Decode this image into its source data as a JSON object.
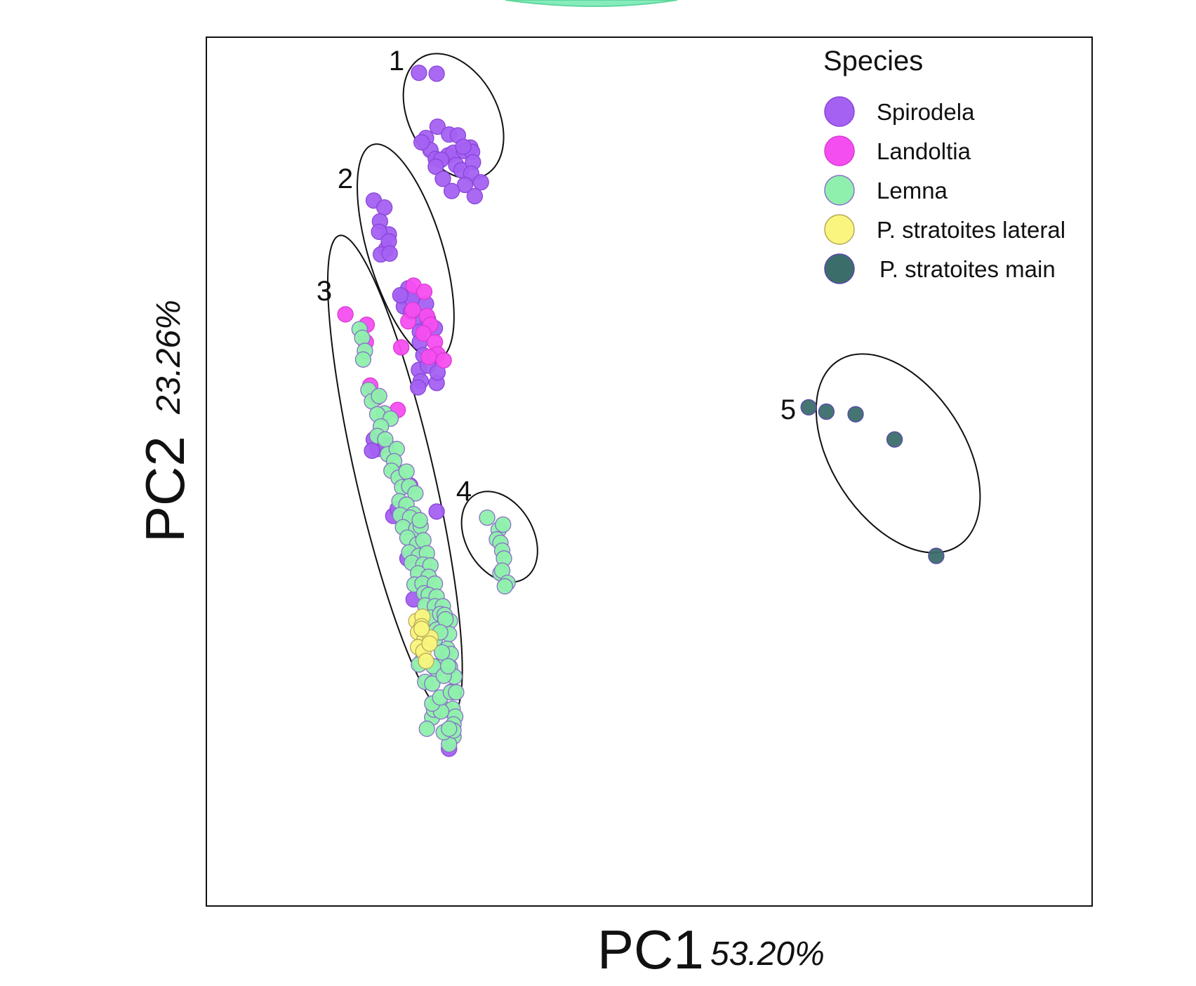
{
  "chart_data": {
    "type": "scatter",
    "title": "",
    "xlabel": "PC1",
    "xlabel_pct": "53.20%",
    "ylabel": "PC2",
    "ylabel_pct": "23.26%",
    "xlim": [
      0,
      100
    ],
    "ylim": [
      0,
      100
    ],
    "grid": false,
    "legend_placement": "top-right",
    "legend_title": "Species",
    "colors": {
      "Spirodela": "#a461f2",
      "Landoltia": "#f54ef0",
      "Lemna": "#8ef0ac",
      "P. stratoites lateral": "#f9f57e",
      "P. stratoites main": "#3b6e6b"
    },
    "legend": [
      "Spirodela",
      "Landoltia",
      "Lemna",
      "P. stratoites lateral",
      "P. stratoites main"
    ],
    "clusters": [
      {
        "label": "1",
        "cx": 27.9,
        "cy": 90.9,
        "rx": 5.0,
        "ry": 7.7,
        "angle": -28
      },
      {
        "label": "2",
        "cx": 22.5,
        "cy": 75.3,
        "rx": 4.2,
        "ry": 12.9,
        "angle": -17
      },
      {
        "label": "3",
        "cx": 21.3,
        "cy": 49.5,
        "rx": 4.4,
        "ry": 28.4,
        "angle": -13
      },
      {
        "label": "4",
        "cx": 33.1,
        "cy": 42.5,
        "rx": 3.8,
        "ry": 5.6,
        "angle": -30
      },
      {
        "label": "5",
        "cx": 78.1,
        "cy": 52.1,
        "rx": 7.5,
        "ry": 12.7,
        "angle": -33
      }
    ],
    "series": [
      {
        "name": "Spirodela",
        "points": [
          [
            24.0,
            95.9
          ],
          [
            26.0,
            95.8
          ],
          [
            26.1,
            89.7
          ],
          [
            24.8,
            88.4
          ],
          [
            27.4,
            88.8
          ],
          [
            28.4,
            88.7
          ],
          [
            29.8,
            87.3
          ],
          [
            25.3,
            87.0
          ],
          [
            27.3,
            86.4
          ],
          [
            25.9,
            86.0
          ],
          [
            27.9,
            86.7
          ],
          [
            29.1,
            86.9
          ],
          [
            30.0,
            86.8
          ],
          [
            26.5,
            85.9
          ],
          [
            25.9,
            85.1
          ],
          [
            28.2,
            85.3
          ],
          [
            28.8,
            84.7
          ],
          [
            30.1,
            85.6
          ],
          [
            29.9,
            84.3
          ],
          [
            29.2,
            83.0
          ],
          [
            31.0,
            83.3
          ],
          [
            30.3,
            81.7
          ],
          [
            27.7,
            82.3
          ],
          [
            26.7,
            83.7
          ],
          [
            24.3,
            87.9
          ],
          [
            29.0,
            87.4
          ],
          [
            18.9,
            81.2
          ],
          [
            20.1,
            80.4
          ],
          [
            19.6,
            78.8
          ],
          [
            20.6,
            77.3
          ],
          [
            19.5,
            77.6
          ],
          [
            20.3,
            75.6
          ],
          [
            19.7,
            75.0
          ],
          [
            20.6,
            76.5
          ],
          [
            20.7,
            75.1
          ],
          [
            22.8,
            71.1
          ],
          [
            22.2,
            70.1
          ],
          [
            23.1,
            69.6
          ],
          [
            22.3,
            69.0
          ],
          [
            24.8,
            69.3
          ],
          [
            23.1,
            68.4
          ],
          [
            24.4,
            67.2
          ],
          [
            25.0,
            67.6
          ],
          [
            24.1,
            66.1
          ],
          [
            25.8,
            66.5
          ],
          [
            24.1,
            64.9
          ],
          [
            24.5,
            63.4
          ],
          [
            25.9,
            63.3
          ],
          [
            24.0,
            61.7
          ],
          [
            24.2,
            60.4
          ],
          [
            26.0,
            60.2
          ],
          [
            23.9,
            59.7
          ],
          [
            25.0,
            62.2
          ],
          [
            23.2,
            69.9
          ],
          [
            21.9,
            70.3
          ],
          [
            26.1,
            61.4
          ],
          [
            18.9,
            53.7
          ],
          [
            19.3,
            52.6
          ],
          [
            21.1,
            44.9
          ],
          [
            18.7,
            52.4
          ],
          [
            23.0,
            48.4
          ],
          [
            21.6,
            45.7
          ],
          [
            20.3,
            53.1
          ],
          [
            22.7,
            40.0
          ],
          [
            23.4,
            35.3
          ],
          [
            26.0,
            45.4
          ],
          [
            27.4,
            18.1
          ]
        ]
      },
      {
        "name": "Landoltia",
        "points": [
          [
            15.7,
            68.1
          ],
          [
            18.1,
            66.9
          ],
          [
            18.0,
            64.9
          ],
          [
            18.5,
            59.9
          ],
          [
            19.2,
            58.5
          ],
          [
            21.6,
            57.1
          ],
          [
            22.0,
            64.3
          ],
          [
            22.8,
            67.3
          ],
          [
            23.3,
            68.6
          ],
          [
            24.9,
            67.9
          ],
          [
            25.3,
            66.9
          ],
          [
            24.5,
            65.9
          ],
          [
            25.8,
            64.9
          ],
          [
            26.1,
            63.5
          ],
          [
            26.8,
            62.8
          ],
          [
            25.1,
            63.2
          ],
          [
            23.4,
            71.4
          ],
          [
            24.6,
            70.7
          ]
        ]
      },
      {
        "name": "Lemna",
        "points": [
          [
            17.3,
            66.4
          ],
          [
            17.6,
            65.4
          ],
          [
            17.9,
            63.9
          ],
          [
            17.7,
            62.9
          ],
          [
            18.3,
            59.4
          ],
          [
            18.7,
            58.1
          ],
          [
            19.5,
            58.7
          ],
          [
            20.1,
            56.7
          ],
          [
            19.3,
            56.6
          ],
          [
            20.8,
            56.1
          ],
          [
            19.7,
            55.2
          ],
          [
            19.3,
            54.1
          ],
          [
            20.2,
            53.7
          ],
          [
            20.5,
            52.0
          ],
          [
            21.5,
            52.6
          ],
          [
            21.2,
            51.2
          ],
          [
            20.9,
            50.1
          ],
          [
            21.7,
            49.3
          ],
          [
            22.6,
            50.0
          ],
          [
            22.1,
            48.2
          ],
          [
            22.9,
            48.3
          ],
          [
            23.6,
            47.5
          ],
          [
            21.8,
            46.6
          ],
          [
            22.6,
            46.2
          ],
          [
            23.4,
            45.1
          ],
          [
            21.9,
            45.0
          ],
          [
            23.0,
            44.7
          ],
          [
            22.2,
            43.6
          ],
          [
            23.7,
            43.4
          ],
          [
            24.2,
            43.7
          ],
          [
            22.7,
            42.4
          ],
          [
            23.8,
            41.6
          ],
          [
            24.5,
            42.1
          ],
          [
            22.9,
            40.7
          ],
          [
            24.0,
            40.3
          ],
          [
            24.9,
            40.6
          ],
          [
            23.2,
            39.5
          ],
          [
            24.5,
            39.3
          ],
          [
            25.3,
            39.2
          ],
          [
            23.9,
            38.3
          ],
          [
            25.1,
            37.9
          ],
          [
            23.5,
            37.0
          ],
          [
            24.4,
            37.1
          ],
          [
            25.8,
            37.1
          ],
          [
            24.6,
            36.0
          ],
          [
            25.1,
            35.8
          ],
          [
            26.0,
            35.6
          ],
          [
            24.7,
            34.6
          ],
          [
            25.8,
            34.5
          ],
          [
            26.7,
            34.5
          ],
          [
            25.3,
            33.2
          ],
          [
            26.4,
            33.6
          ],
          [
            27.5,
            32.8
          ],
          [
            26.0,
            31.8
          ],
          [
            27.4,
            31.3
          ],
          [
            27.2,
            29.6
          ],
          [
            26.8,
            28.2
          ],
          [
            25.9,
            27.3
          ],
          [
            27.0,
            28.0
          ],
          [
            27.5,
            27.5
          ],
          [
            27.7,
            24.7
          ],
          [
            27.0,
            22.6
          ],
          [
            27.8,
            22.7
          ],
          [
            28.1,
            21.8
          ],
          [
            27.9,
            20.9
          ],
          [
            27.9,
            19.5
          ],
          [
            27.4,
            18.6
          ],
          [
            26.8,
            20.0
          ],
          [
            25.5,
            21.7
          ],
          [
            24.9,
            20.4
          ],
          [
            25.7,
            22.6
          ],
          [
            26.5,
            22.4
          ],
          [
            25.5,
            23.3
          ],
          [
            26.4,
            24.0
          ],
          [
            27.6,
            24.6
          ],
          [
            24.7,
            25.8
          ],
          [
            25.5,
            25.6
          ],
          [
            25.6,
            27.6
          ],
          [
            28.2,
            24.6
          ],
          [
            28.0,
            26.4
          ],
          [
            26.8,
            26.5
          ],
          [
            25.8,
            30.7
          ],
          [
            26.9,
            33.5
          ],
          [
            24.1,
            44.4
          ],
          [
            27.9,
            20.2
          ],
          [
            27.4,
            20.4
          ],
          [
            27.6,
            29.0
          ],
          [
            27.0,
            33.0
          ],
          [
            26.4,
            31.5
          ],
          [
            26.6,
            29.2
          ],
          [
            27.3,
            27.6
          ],
          [
            24.5,
            28.5
          ],
          [
            24.0,
            27.8
          ],
          [
            31.7,
            44.7
          ],
          [
            33.0,
            43.3
          ],
          [
            33.5,
            43.9
          ],
          [
            32.8,
            42.2
          ],
          [
            33.2,
            41.8
          ],
          [
            33.4,
            40.9
          ],
          [
            33.6,
            40.0
          ],
          [
            33.2,
            38.3
          ],
          [
            33.4,
            38.6
          ],
          [
            34.0,
            37.2
          ],
          [
            33.7,
            36.8
          ]
        ]
      },
      {
        "name": "P. stratoites lateral",
        "points": [
          [
            23.7,
            32.8
          ],
          [
            24.4,
            33.3
          ],
          [
            24.3,
            32.2
          ],
          [
            23.9,
            31.5
          ],
          [
            24.8,
            30.1
          ],
          [
            24.6,
            30.6
          ],
          [
            25.3,
            30.9
          ],
          [
            23.9,
            29.8
          ],
          [
            24.5,
            29.3
          ],
          [
            24.8,
            28.2
          ],
          [
            25.2,
            30.2
          ],
          [
            24.3,
            31.9
          ]
        ]
      },
      {
        "name": "P. stratoites main",
        "points": [
          [
            68.0,
            57.4
          ],
          [
            70.0,
            56.9
          ],
          [
            73.3,
            56.6
          ],
          [
            77.7,
            53.7
          ],
          [
            82.4,
            40.3
          ]
        ]
      }
    ]
  }
}
